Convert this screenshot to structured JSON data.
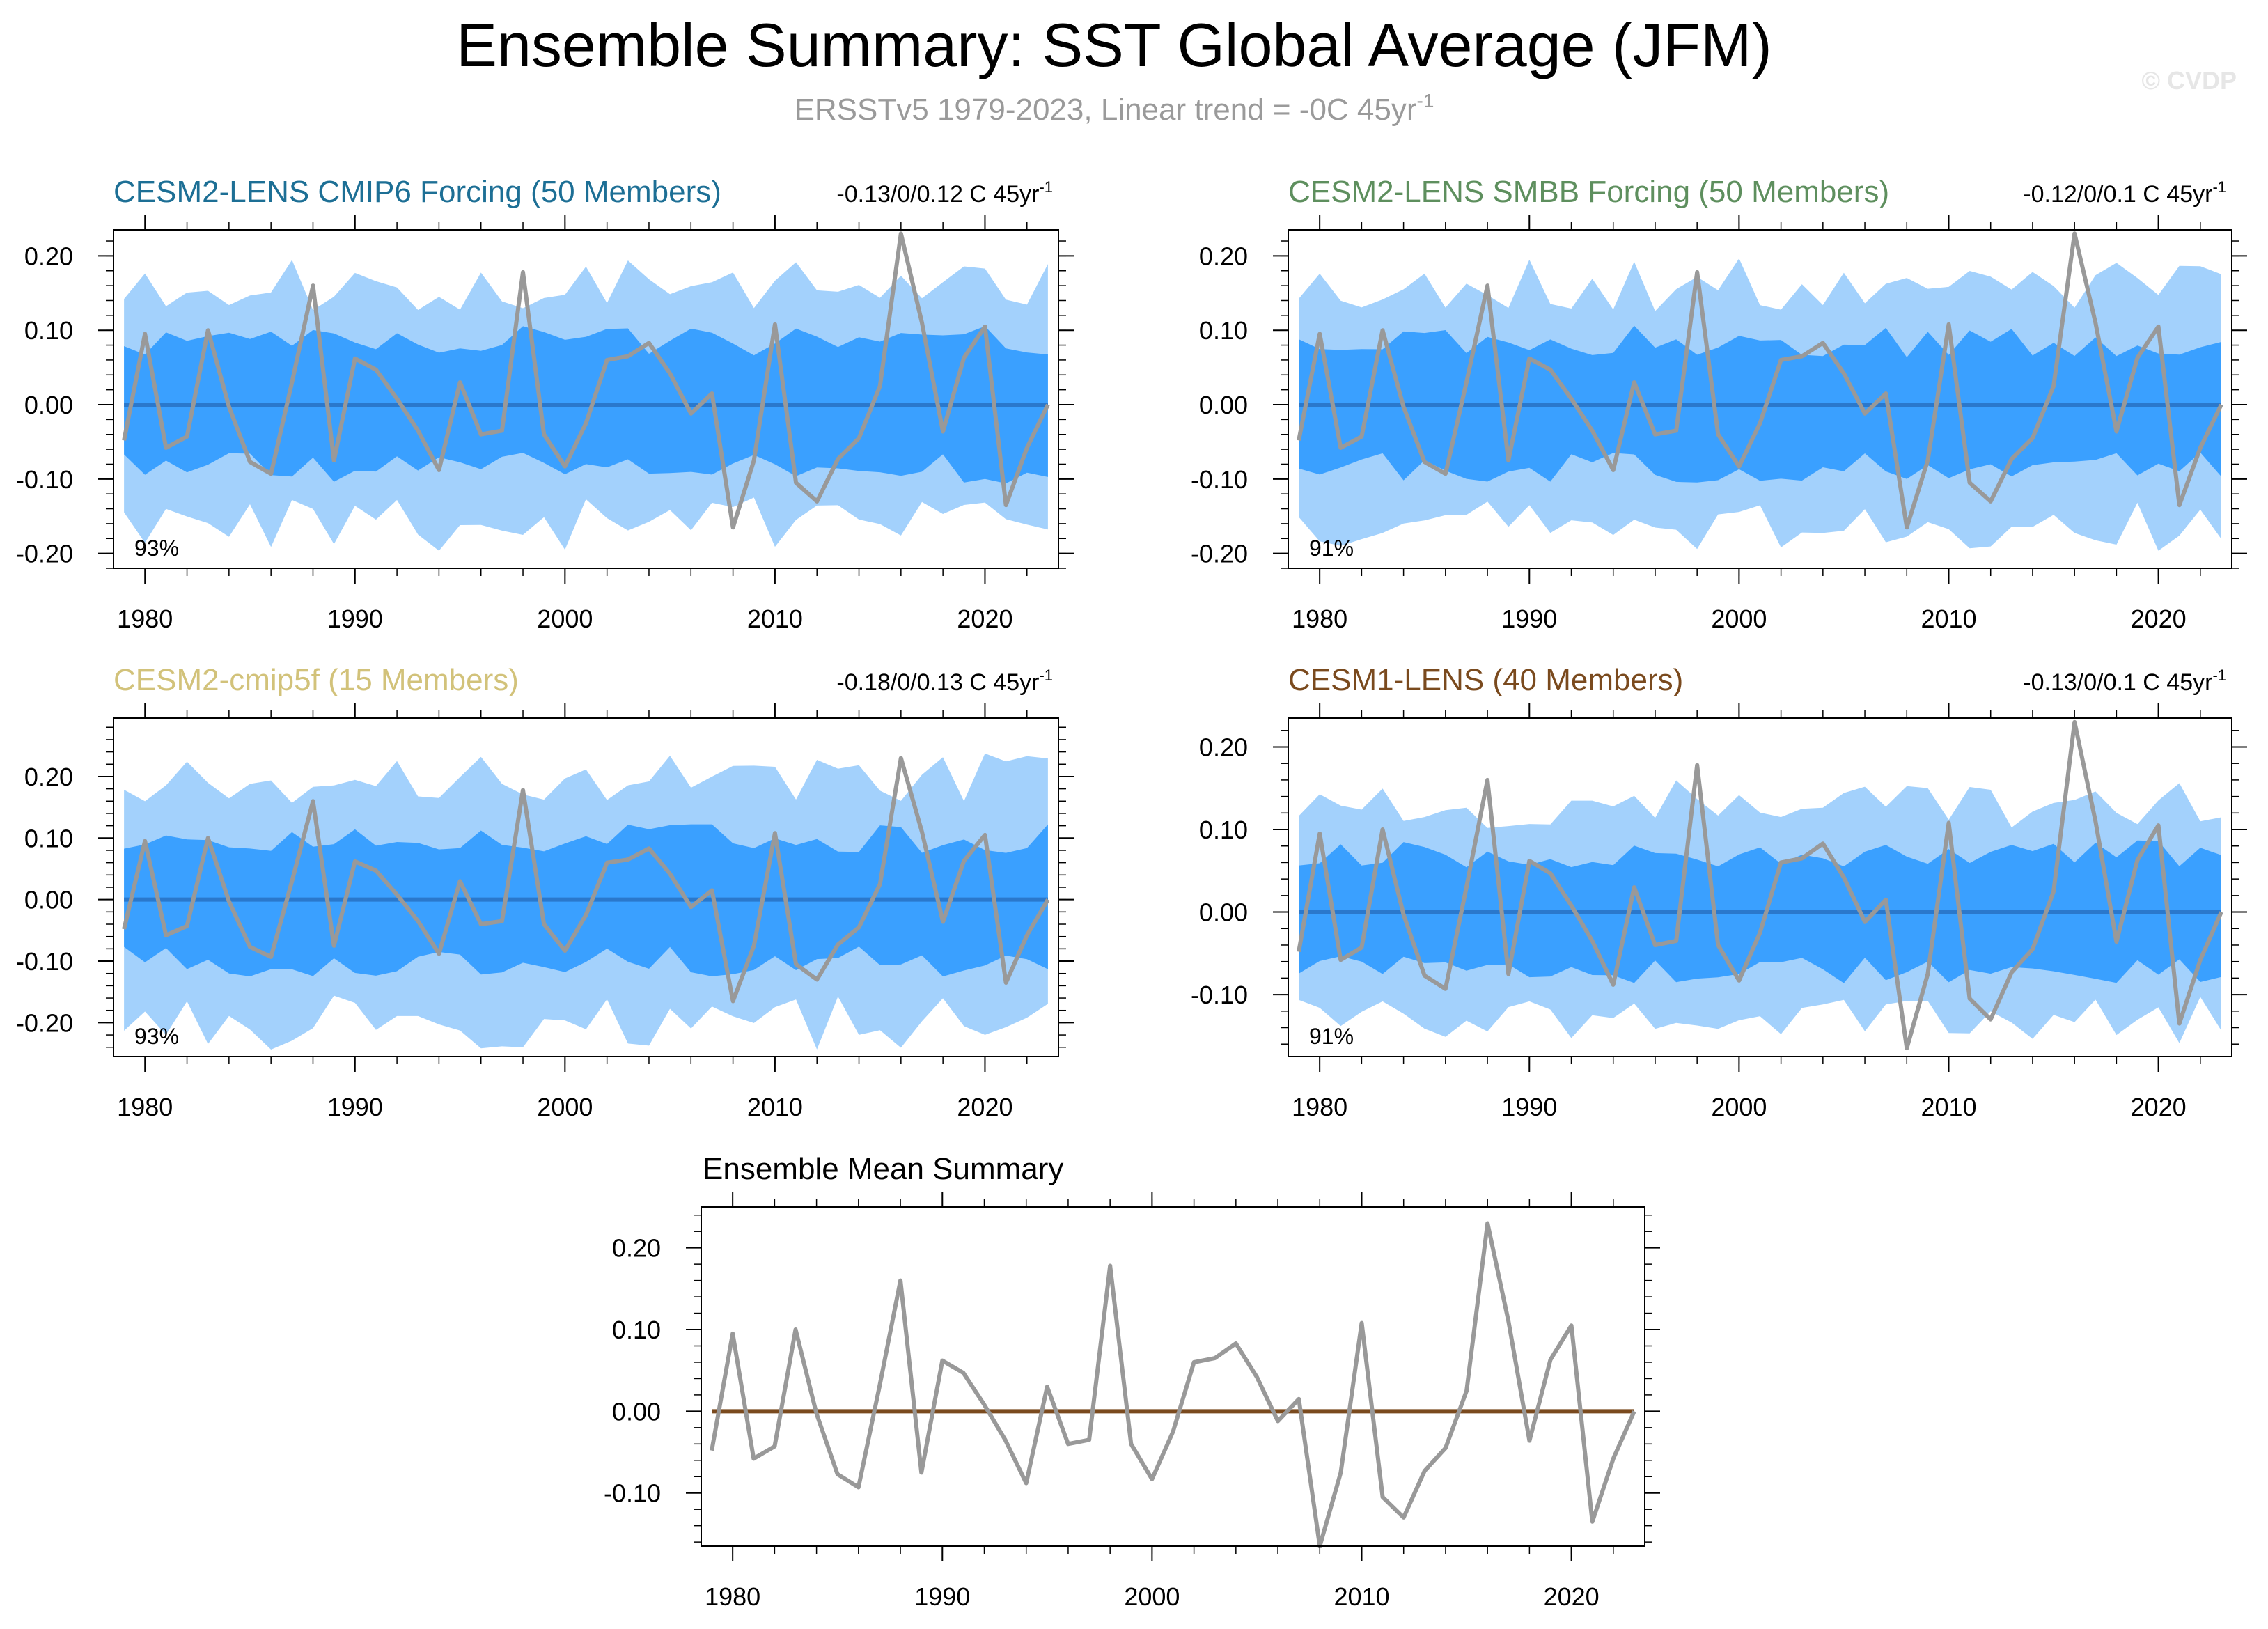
{
  "title": "Ensemble Summary: SST Global Average (JFM)",
  "subtitle": "ERSSTv5 1979-2023, Linear trend = -0C 45yr",
  "subtitle_sup": "-1",
  "watermark": "© CVDP",
  "colors": {
    "obs_line": "#999999",
    "mean_line": "#2a78cc",
    "band_inner": "#3aa0ff",
    "band_outer": "#a3d1fc",
    "ensemble_mean_line": "#7a4a1e"
  },
  "chart_data": [
    {
      "type": "area",
      "id": "cmip6",
      "title": "CESM2-LENS CMIP6 Forcing (50 Members)",
      "title_color": "#1d6f95",
      "trend_label": "-0.13/0/0.12 C 45yr",
      "trend_sup": "-1",
      "percent_label": "93%",
      "ylim": [
        -0.22,
        0.235
      ],
      "yticks": [
        "0.20",
        "0.10",
        "0.00",
        "-0.10",
        "-0.20"
      ],
      "ytick_values": [
        0.2,
        0.1,
        0.0,
        -0.1,
        -0.2
      ],
      "seed": 11,
      "outer_amp": 0.16,
      "inner_amp": 0.085
    },
    {
      "type": "area",
      "id": "smbb",
      "title": "CESM2-LENS SMBB Forcing (50 Members)",
      "title_color": "#5e8f5e",
      "trend_label": "-0.12/0/0.1 C 45yr",
      "trend_sup": "-1",
      "percent_label": "91%",
      "ylim": [
        -0.22,
        0.235
      ],
      "yticks": [
        "0.20",
        "0.10",
        "0.00",
        "-0.10",
        "-0.20"
      ],
      "ytick_values": [
        0.2,
        0.1,
        0.0,
        -0.1,
        -0.2
      ],
      "seed": 23,
      "outer_amp": 0.16,
      "inner_amp": 0.085
    },
    {
      "type": "area",
      "id": "cmip5f",
      "title": "CESM2-cmip5f (15 Members)",
      "title_color": "#d2c27a",
      "trend_label": "-0.18/0/0.13 C 45yr",
      "trend_sup": "-1",
      "percent_label": "93%",
      "ylim": [
        -0.255,
        0.295
      ],
      "yticks": [
        "0.20",
        "0.10",
        "0.00",
        "-0.10",
        "-0.20"
      ],
      "ytick_values": [
        0.2,
        0.1,
        0.0,
        -0.1,
        -0.2
      ],
      "seed": 37,
      "outer_amp": 0.2,
      "inner_amp": 0.1
    },
    {
      "type": "area",
      "id": "cesm1",
      "title": "CESM1-LENS (40 Members)",
      "title_color": "#7a4a1e",
      "trend_label": "-0.13/0/0.1 C 45yr",
      "trend_sup": "-1",
      "percent_label": "91%",
      "ylim": [
        -0.175,
        0.235
      ],
      "yticks": [
        "0.20",
        "0.10",
        "0.00",
        "-0.10"
      ],
      "ytick_values": [
        0.2,
        0.1,
        0.0,
        -0.1
      ],
      "seed": 53,
      "outer_amp": 0.13,
      "inner_amp": 0.07
    },
    {
      "type": "line",
      "id": "mean",
      "title": "Ensemble Mean Summary",
      "title_color": "#000000",
      "ylim": [
        -0.165,
        0.25
      ],
      "yticks": [
        "0.20",
        "0.10",
        "0.00",
        "-0.10"
      ],
      "ytick_values": [
        0.2,
        0.1,
        0.0,
        -0.1
      ]
    }
  ],
  "x_axis": {
    "xlim": [
      1978.5,
      2023.5
    ],
    "xticks": [
      "1980",
      "1990",
      "2000",
      "2010",
      "2020"
    ],
    "xtick_values": [
      1980,
      1990,
      2000,
      2010,
      2020
    ]
  },
  "observed": {
    "years": [
      1979,
      1980,
      1981,
      1982,
      1983,
      1984,
      1985,
      1986,
      1987,
      1988,
      1989,
      1990,
      1991,
      1992,
      1993,
      1994,
      1995,
      1996,
      1997,
      1998,
      1999,
      2000,
      2001,
      2002,
      2003,
      2004,
      2005,
      2006,
      2007,
      2008,
      2009,
      2010,
      2011,
      2012,
      2013,
      2014,
      2015,
      2016,
      2017,
      2018,
      2019,
      2020,
      2021,
      2022,
      2023
    ],
    "values": [
      -0.048,
      0.095,
      -0.058,
      -0.043,
      0.1,
      -0.003,
      -0.077,
      -0.093,
      0.03,
      0.16,
      -0.075,
      0.062,
      0.047,
      0.008,
      -0.035,
      -0.088,
      0.03,
      -0.04,
      -0.035,
      0.178,
      -0.04,
      -0.083,
      -0.025,
      0.06,
      0.065,
      0.083,
      0.042,
      -0.012,
      0.015,
      -0.165,
      -0.075,
      0.108,
      -0.105,
      -0.13,
      -0.073,
      -0.045,
      0.025,
      0.23,
      0.11,
      -0.036,
      0.063,
      0.105,
      -0.135,
      -0.058,
      0.0
    ]
  }
}
